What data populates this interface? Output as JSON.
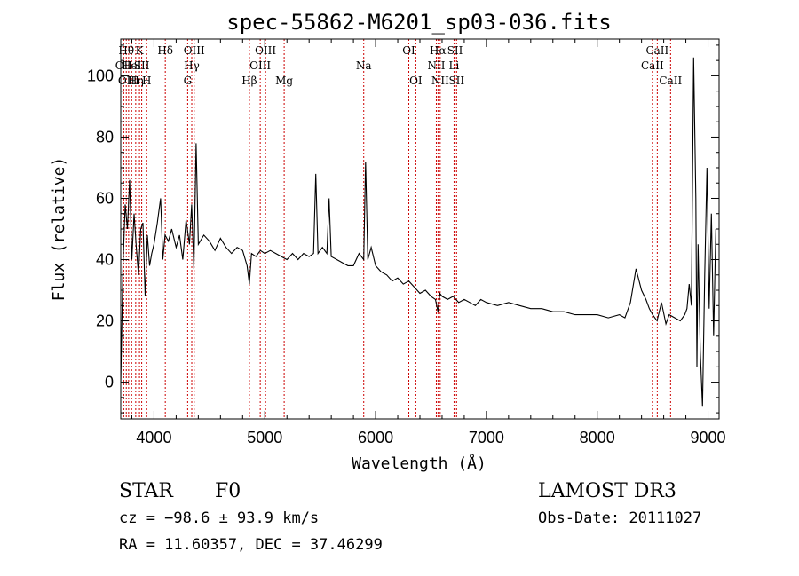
{
  "chart_data": {
    "type": "line",
    "title": "spec-55862-M6201_sp03-036.fits",
    "xlabel": "Wavelength (Å)",
    "ylabel": "Flux (relative)",
    "xlim": [
      3700,
      9100
    ],
    "ylim": [
      -12,
      112
    ],
    "xticks": [
      4000,
      5000,
      6000,
      7000,
      8000,
      9000
    ],
    "yticks": [
      0,
      20,
      40,
      60,
      80,
      100
    ],
    "series": [
      {
        "name": "spectrum",
        "x": [
          3700,
          3720,
          3740,
          3760,
          3780,
          3800,
          3820,
          3840,
          3860,
          3880,
          3900,
          3920,
          3940,
          3960,
          3980,
          4000,
          4030,
          4060,
          4080,
          4100,
          4130,
          4160,
          4200,
          4230,
          4260,
          4290,
          4320,
          4340,
          4360,
          4380,
          4400,
          4450,
          4500,
          4550,
          4600,
          4650,
          4700,
          4750,
          4800,
          4840,
          4861,
          4880,
          4920,
          4960,
          5000,
          5050,
          5100,
          5150,
          5200,
          5250,
          5300,
          5350,
          5400,
          5440,
          5460,
          5480,
          5520,
          5560,
          5580,
          5600,
          5650,
          5700,
          5750,
          5800,
          5850,
          5893,
          5910,
          5930,
          5960,
          6000,
          6050,
          6100,
          6150,
          6200,
          6250,
          6300,
          6350,
          6400,
          6450,
          6500,
          6540,
          6563,
          6580,
          6600,
          6650,
          6700,
          6750,
          6800,
          6850,
          6900,
          6950,
          7000,
          7100,
          7200,
          7300,
          7400,
          7500,
          7600,
          7700,
          7800,
          7900,
          8000,
          8100,
          8200,
          8250,
          8300,
          8350,
          8400,
          8440,
          8470,
          8500,
          8540,
          8580,
          8620,
          8650,
          8700,
          8750,
          8790,
          8810,
          8830,
          8850,
          8870,
          8890,
          8900,
          8910,
          8930,
          8950,
          8970,
          8990,
          9010,
          9030,
          9050,
          9070
        ],
        "values": [
          0,
          38,
          58,
          50,
          66,
          40,
          55,
          44,
          35,
          50,
          52,
          28,
          48,
          38,
          42,
          45,
          52,
          60,
          40,
          48,
          46,
          50,
          44,
          48,
          40,
          53,
          45,
          58,
          37,
          78,
          45,
          48,
          46,
          43,
          47,
          44,
          42,
          44,
          43,
          38,
          32,
          42,
          41,
          43,
          42,
          43,
          42,
          41,
          40,
          42,
          40,
          42,
          41,
          42,
          68,
          42,
          44,
          42,
          60,
          41,
          40,
          39,
          38,
          38,
          42,
          40,
          72,
          40,
          44,
          38,
          36,
          35,
          33,
          34,
          32,
          33,
          31,
          29,
          30,
          28,
          27,
          23,
          29,
          28,
          27,
          28,
          26,
          27,
          26,
          25,
          27,
          26,
          25,
          26,
          25,
          24,
          24,
          23,
          23,
          22,
          22,
          22,
          21,
          22,
          21,
          26,
          37,
          30,
          27,
          24,
          22,
          20,
          26,
          19,
          22,
          21,
          20,
          22,
          24,
          32,
          25,
          106,
          60,
          5,
          45,
          10,
          -8,
          35,
          70,
          24,
          55,
          15,
          50
        ]
      }
    ],
    "line_labels": [
      {
        "wavelength": 3727,
        "label": "OII",
        "row": 2
      },
      {
        "wavelength": 3750,
        "label": "Hθ",
        "row": 1
      },
      {
        "wavelength": 3771,
        "label": "OIII",
        "row": 3
      },
      {
        "wavelength": 3798,
        "label": "HeI",
        "row": 2
      },
      {
        "wavelength": 3835,
        "label": "Hη",
        "row": 3
      },
      {
        "wavelength": 3869,
        "label": "K",
        "row": 1
      },
      {
        "wavelength": 3889,
        "label": "SII",
        "row": 2
      },
      {
        "wavelength": 3934,
        "label": "H",
        "row": 3
      },
      {
        "wavelength": 4102,
        "label": "Hδ",
        "row": 1
      },
      {
        "wavelength": 4304,
        "label": "G",
        "row": 3
      },
      {
        "wavelength": 4341,
        "label": "Hγ",
        "row": 2
      },
      {
        "wavelength": 4363,
        "label": "OIII",
        "row": 1
      },
      {
        "wavelength": 4861,
        "label": "Hβ",
        "row": 3
      },
      {
        "wavelength": 4959,
        "label": "OIII",
        "row": 2
      },
      {
        "wavelength": 5007,
        "label": "OIII",
        "row": 1
      },
      {
        "wavelength": 5175,
        "label": "Mg",
        "row": 3
      },
      {
        "wavelength": 5893,
        "label": "Na",
        "row": 2
      },
      {
        "wavelength": 6300,
        "label": "OI",
        "row": 1
      },
      {
        "wavelength": 6363,
        "label": "OI",
        "row": 3
      },
      {
        "wavelength": 6548,
        "label": "NII",
        "row": 2
      },
      {
        "wavelength": 6563,
        "label": "Hα",
        "row": 1
      },
      {
        "wavelength": 6583,
        "label": "NII",
        "row": 3
      },
      {
        "wavelength": 6708,
        "label": "Li",
        "row": 2
      },
      {
        "wavelength": 6717,
        "label": "SII",
        "row": 1
      },
      {
        "wavelength": 6731,
        "label": "SII",
        "row": 3
      },
      {
        "wavelength": 8498,
        "label": "CaII",
        "row": 2
      },
      {
        "wavelength": 8542,
        "label": "CaII",
        "row": 1
      },
      {
        "wavelength": 8662,
        "label": "CaII",
        "row": 3
      }
    ],
    "line_color": "#cc0000"
  },
  "footer": {
    "object_class": "STAR",
    "subclass": "F0",
    "survey": "LAMOST DR3",
    "cz": "cz = −98.6 ± 93.9 km/s",
    "obs_date": "Obs-Date: 20111027",
    "coords": "RA =  11.60357, DEC =  37.46299"
  }
}
